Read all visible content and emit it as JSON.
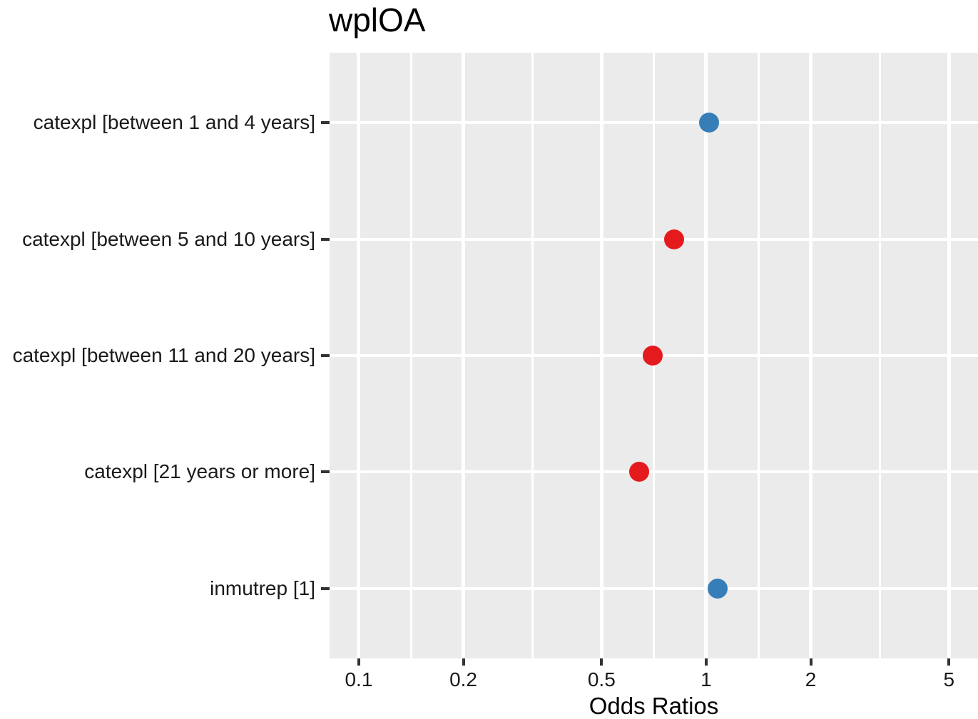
{
  "title": "wplOA",
  "colors": {
    "positive_point": "#377EB8",
    "negative_point": "#E41A1C",
    "panel_background": "#EBEBEB",
    "gridline": "#FFFFFF",
    "tick_mark": "#333333",
    "axis_text": "#1A1A1A",
    "title_text": "#000000"
  },
  "chart_data": {
    "type": "scatter",
    "subtype": "dot-plot-odds-ratios",
    "title": "wplOA",
    "xlabel": "Odds Ratios",
    "ylabel": "",
    "x_scale": "log10",
    "xlim": [
      0.0824,
      6.06
    ],
    "grid": true,
    "legend_position": "none",
    "x_ticks": [
      {
        "value": 0.1,
        "label": "0.1"
      },
      {
        "value": 0.2,
        "label": "0.2"
      },
      {
        "value": 0.5,
        "label": "0.5"
      },
      {
        "value": 1,
        "label": "1"
      },
      {
        "value": 2,
        "label": "2"
      },
      {
        "value": 5,
        "label": "5"
      }
    ],
    "x_minor_gridlines": [
      0.1414,
      0.3162,
      0.7071,
      1.4142,
      3.1623
    ],
    "categories": [
      "catexpl [between 1 and 4 years]",
      "catexpl [between 5 and 10 years]",
      "catexpl [between 11 and 20 years]",
      "catexpl [21 years or more]",
      "inmutrep [1]"
    ],
    "series": [
      {
        "name": "Odds Ratio",
        "values": [
          1.02,
          0.81,
          0.7,
          0.64,
          1.08
        ],
        "point_colors": [
          "#377EB8",
          "#E41A1C",
          "#E41A1C",
          "#E41A1C",
          "#377EB8"
        ]
      }
    ]
  }
}
